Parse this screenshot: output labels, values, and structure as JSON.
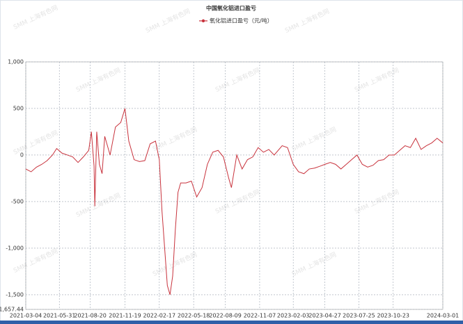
{
  "chart_data": {
    "type": "line",
    "title": "中国氧化铝进口盈亏",
    "watermark": "SMM 上海有色网",
    "x": [
      "2021-03-04",
      "2021-03-18",
      "2021-04-01",
      "2021-04-15",
      "2021-04-29",
      "2021-05-13",
      "2021-05-24",
      "2021-06-07",
      "2021-06-21",
      "2021-07-05",
      "2021-07-19",
      "2021-08-02",
      "2021-08-16",
      "2021-08-23",
      "2021-08-30",
      "2021-09-01",
      "2021-09-06",
      "2021-09-13",
      "2021-09-20",
      "2021-09-27",
      "2021-10-11",
      "2021-10-25",
      "2021-11-08",
      "2021-11-19",
      "2021-11-29",
      "2021-12-13",
      "2021-12-27",
      "2022-01-10",
      "2022-01-24",
      "2022-02-07",
      "2022-02-17",
      "2022-02-24",
      "2022-03-03",
      "2022-03-10",
      "2022-03-17",
      "2022-03-24",
      "2022-03-31",
      "2022-04-07",
      "2022-04-14",
      "2022-04-28",
      "2022-05-12",
      "2022-05-26",
      "2022-06-09",
      "2022-06-23",
      "2022-07-07",
      "2022-07-21",
      "2022-08-04",
      "2022-08-18",
      "2022-08-25",
      "2022-09-08",
      "2022-09-22",
      "2022-10-06",
      "2022-10-20",
      "2022-11-03",
      "2022-11-17",
      "2022-12-01",
      "2022-12-15",
      "2023-01-05",
      "2023-01-19",
      "2023-02-03",
      "2023-02-17",
      "2023-03-03",
      "2023-03-17",
      "2023-03-31",
      "2023-04-14",
      "2023-04-27",
      "2023-05-11",
      "2023-05-25",
      "2023-06-08",
      "2023-06-22",
      "2023-07-06",
      "2023-07-20",
      "2023-08-03",
      "2023-08-17",
      "2023-08-31",
      "2023-09-14",
      "2023-09-28",
      "2023-10-12",
      "2023-10-26",
      "2023-11-09",
      "2023-11-23",
      "2023-12-07",
      "2023-12-21",
      "2024-01-04",
      "2024-01-18",
      "2024-02-01",
      "2024-02-15",
      "2024-03-01"
    ],
    "series": [
      {
        "name": "氧化铝进口盈亏（元/吨）",
        "color": "#c8323c",
        "values": [
          -150,
          -180,
          -130,
          -100,
          -60,
          0,
          70,
          20,
          0,
          -20,
          -80,
          -20,
          50,
          250,
          -120,
          -550,
          250,
          -100,
          -200,
          200,
          0,
          300,
          350,
          500,
          150,
          -50,
          -70,
          -60,
          120,
          150,
          -50,
          -600,
          -1000,
          -1400,
          -1500,
          -1300,
          -800,
          -400,
          -300,
          -300,
          -280,
          -450,
          -350,
          -100,
          30,
          50,
          -20,
          -250,
          -350,
          0,
          -150,
          -50,
          -20,
          80,
          30,
          60,
          0,
          100,
          80,
          -100,
          -180,
          -200,
          -150,
          -140,
          -120,
          -100,
          -80,
          -100,
          -150,
          -100,
          -50,
          0,
          -100,
          -130,
          -110,
          -60,
          -50,
          0,
          0,
          50,
          100,
          80,
          180,
          60,
          100,
          130,
          180,
          130
        ]
      }
    ],
    "ylim": [
      -1657.44,
      1000
    ],
    "yticks": [
      {
        "value": 1000,
        "label": "1,000"
      },
      500,
      0,
      -500,
      {
        "value": -1000,
        "label": "-1,000"
      },
      {
        "value": -1500,
        "label": "-1,500"
      },
      {
        "value": -1657.44,
        "label": "-1,657.44"
      }
    ],
    "xlim": [
      "2021-03-04",
      "2024-03-01"
    ],
    "xticks": [
      "2021-03-04",
      "2021-05-31",
      "2021-08-20",
      "2021-11-19",
      "2022-02-17",
      "2022-05-18",
      "2022-08-09",
      "2022-11-07",
      "2023-02-03",
      "2023-04-27",
      "2023-07-25",
      "2023-10-23",
      "2024-03-01"
    ],
    "grid": true,
    "legend": "top"
  }
}
